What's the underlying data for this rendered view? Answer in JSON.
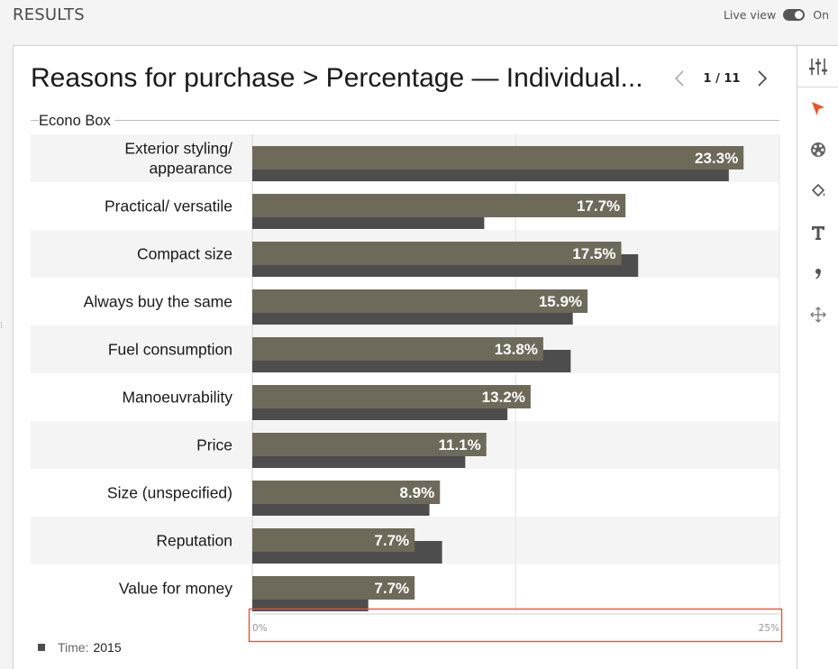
{
  "header": {
    "title": "RESULTS",
    "live_view_label": "Live view",
    "live_view_state": "On"
  },
  "chart_header": {
    "title": "Reasons for purchase > Percentage — Individual...",
    "page_current": "1",
    "page_separator": "/",
    "page_total": "11"
  },
  "toolbar": {
    "icons": [
      "sliders-icon",
      "pointer-icon",
      "palette-icon",
      "paint-bucket-icon",
      "text-icon",
      "comma-icon",
      "move-icon"
    ],
    "active": "pointer-icon"
  },
  "colors": {
    "bar_primary": "#6e6a59",
    "bar_secondary": "#4d4d4d",
    "band": "#f4f4f4",
    "accent": "#e8562a",
    "label_text": "#ffffff"
  },
  "chart_data": {
    "type": "bar",
    "orientation": "horizontal",
    "group": "Econo Box",
    "categories": [
      [
        "Exterior styling/",
        "appearance"
      ],
      [
        "Practical/ versatile"
      ],
      [
        "Compact size"
      ],
      [
        "Always buy the same"
      ],
      [
        "Fuel consumption"
      ],
      [
        "Manoeuvrability"
      ],
      [
        "Price"
      ],
      [
        "Size (unspecified)"
      ],
      [
        "Reputation"
      ],
      [
        "Value for money"
      ]
    ],
    "series": [
      {
        "values": [
          23.3,
          17.7,
          17.5,
          15.9,
          13.8,
          13.2,
          11.1,
          8.9,
          7.7,
          7.7
        ],
        "labels": [
          "23.3%",
          "17.7%",
          "17.5%",
          "15.9%",
          "13.8%",
          "13.2%",
          "11.1%",
          "8.9%",
          "7.7%",
          "7.7%"
        ]
      },
      {
        "values": [
          22.6,
          11.0,
          18.3,
          15.2,
          15.1,
          12.1,
          10.1,
          8.4,
          9.0,
          5.5
        ]
      }
    ],
    "xlim": [
      0,
      25
    ],
    "ticks": [
      "0%",
      "25%"
    ],
    "legend": {
      "label": "Time:",
      "value": "2015",
      "position": "bottom-left"
    }
  }
}
